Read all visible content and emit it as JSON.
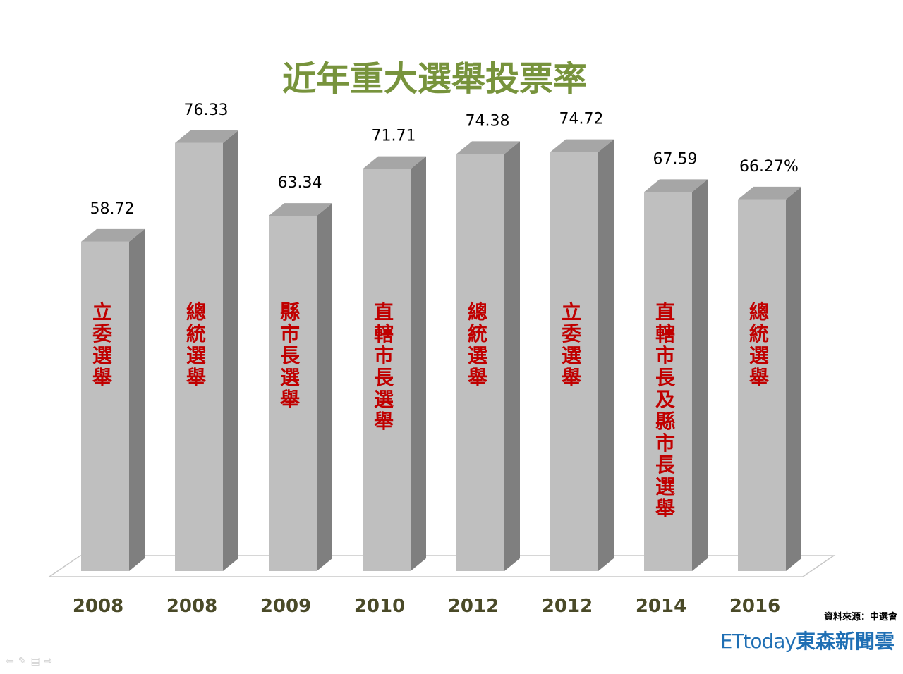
{
  "chart_data": {
    "type": "bar",
    "title": "近年重大選舉投票率",
    "categories": [
      "2008",
      "2008",
      "2009",
      "2010",
      "2012",
      "2012",
      "2014",
      "2016"
    ],
    "bar_labels": [
      "立委選舉",
      "總統選舉",
      "縣市長選舉",
      "直轄市長選舉",
      "總統選舉",
      "立委選舉",
      "直轄市長及縣市長選舉",
      "總統選舉"
    ],
    "values": [
      58.72,
      76.33,
      63.34,
      71.71,
      74.38,
      74.72,
      67.59,
      66.27
    ],
    "value_labels": [
      "58.72",
      "76.33",
      "63.34",
      "71.71",
      "74.38",
      "74.72",
      "67.59",
      "66.27%"
    ],
    "ylim": [
      0,
      88
    ],
    "style": "3d-column",
    "colors": {
      "bar_front": "#bfbfbf",
      "bar_side": "#7f7f7f",
      "bar_top": "#a6a6a6",
      "bar_text": "#c00000",
      "year_text": "#4a4a28",
      "title": "#77933c"
    }
  },
  "source": "資料來源：中選會",
  "brand": {
    "latin": "ETtoday",
    "chinese": "東森新聞雲"
  },
  "nav_icons": [
    "arrow-left-icon",
    "pen-icon",
    "menu-icon",
    "arrow-right-icon"
  ]
}
